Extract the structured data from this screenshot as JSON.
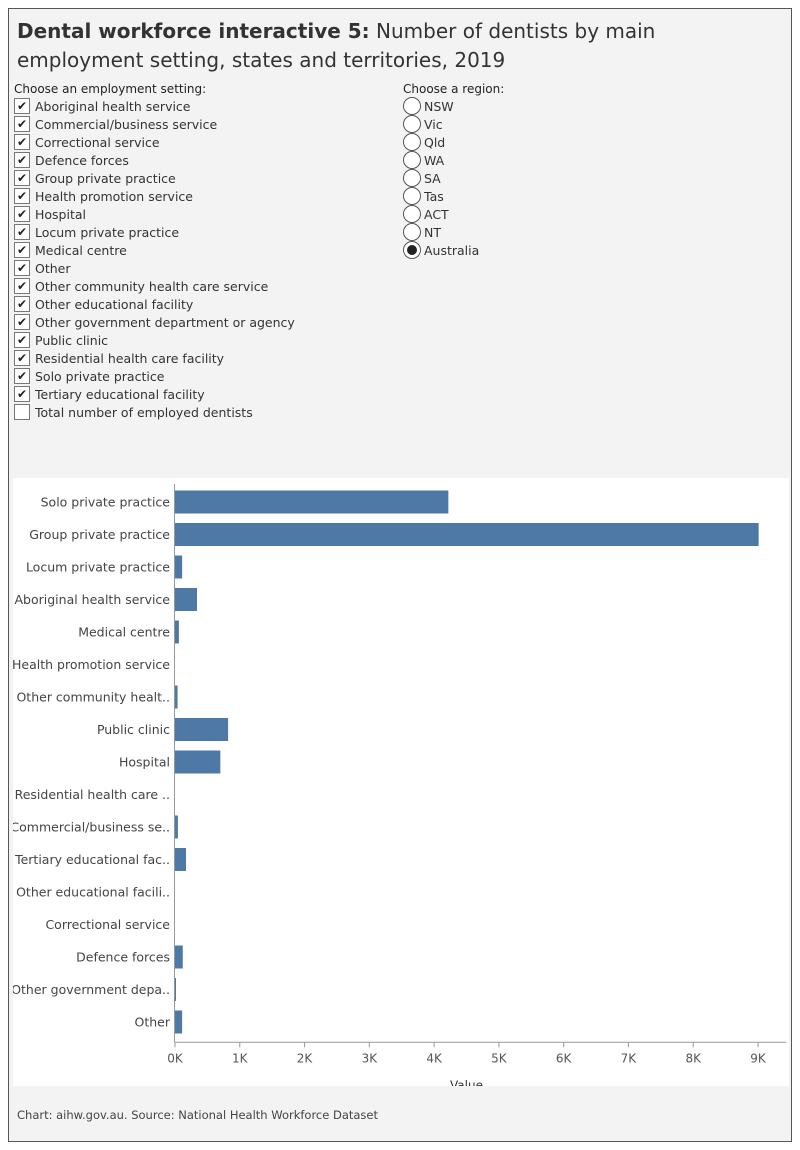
{
  "title": {
    "bold": "Dental workforce interactive 5:",
    "rest": " Number of dentists by main employment setting, states and territories, 2019"
  },
  "employment_filter": {
    "label": "Choose an employment setting:",
    "items": [
      {
        "label": "Aboriginal health service",
        "checked": true
      },
      {
        "label": "Commercial/business service",
        "checked": true
      },
      {
        "label": "Correctional service",
        "checked": true
      },
      {
        "label": "Defence forces",
        "checked": true
      },
      {
        "label": "Group private practice",
        "checked": true
      },
      {
        "label": "Health promotion service",
        "checked": true
      },
      {
        "label": "Hospital",
        "checked": true
      },
      {
        "label": "Locum private practice",
        "checked": true
      },
      {
        "label": "Medical centre",
        "checked": true
      },
      {
        "label": "Other",
        "checked": true
      },
      {
        "label": "Other community health care service",
        "checked": true
      },
      {
        "label": "Other educational facility",
        "checked": true
      },
      {
        "label": "Other government department or agency",
        "checked": true
      },
      {
        "label": "Public clinic",
        "checked": true
      },
      {
        "label": "Residential health care facility",
        "checked": true
      },
      {
        "label": "Solo private practice",
        "checked": true
      },
      {
        "label": "Tertiary educational facility",
        "checked": true
      },
      {
        "label": "Total number of employed dentists",
        "checked": false
      }
    ]
  },
  "region_filter": {
    "label": "Choose a region:",
    "items": [
      {
        "label": "NSW",
        "selected": false
      },
      {
        "label": "Vic",
        "selected": false
      },
      {
        "label": "Qld",
        "selected": false
      },
      {
        "label": "WA",
        "selected": false
      },
      {
        "label": "SA",
        "selected": false
      },
      {
        "label": "Tas",
        "selected": false
      },
      {
        "label": "ACT",
        "selected": false
      },
      {
        "label": "NT",
        "selected": false
      },
      {
        "label": "Australia",
        "selected": true
      }
    ]
  },
  "chart_data": {
    "type": "bar",
    "orientation": "horizontal",
    "categories": [
      "Solo private practice",
      "Group private practice",
      "Locum private practice",
      "Aboriginal health service",
      "Medical centre",
      "Health promotion service",
      "Other community healt..",
      "Public clinic",
      "Hospital",
      "Residential health care ..",
      "Commercial/business se..",
      "Tertiary educational fac..",
      "Other educational facili..",
      "Correctional service",
      "Defence forces",
      "Other government depa..",
      "Other"
    ],
    "values": [
      4220,
      9010,
      110,
      340,
      60,
      0,
      40,
      820,
      700,
      0,
      45,
      170,
      0,
      0,
      120,
      15,
      110
    ],
    "xlabel": "Value",
    "ylabel": "",
    "xlim": [
      0,
      9000
    ],
    "x_ticks": [
      0,
      1000,
      2000,
      3000,
      4000,
      5000,
      6000,
      7000,
      8000,
      9000
    ],
    "x_tick_labels": [
      "0K",
      "1K",
      "2K",
      "3K",
      "4K",
      "5K",
      "6K",
      "7K",
      "8K",
      "9K"
    ],
    "bar_color": "#4e79a7",
    "grid": false
  },
  "footer": "Chart: aihw.gov.au. Source: National Health Workforce Dataset"
}
